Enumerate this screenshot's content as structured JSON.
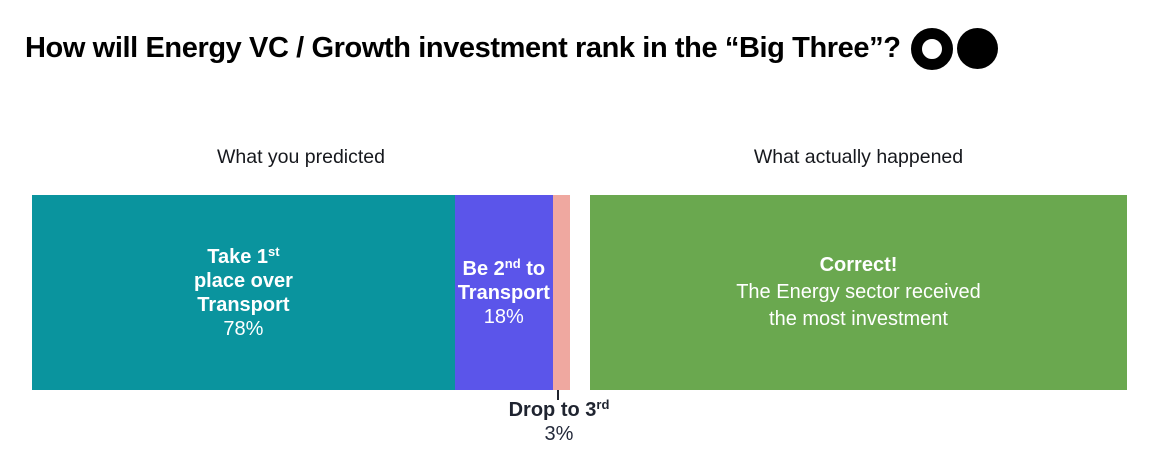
{
  "title": {
    "text": "How will Energy VC / Growth investment rank in the “Big Three”?",
    "icons": [
      {
        "name": "hollow-circle-icon",
        "style": "ring"
      },
      {
        "name": "filled-circle-icon",
        "style": "solid"
      }
    ]
  },
  "colors": {
    "teal": "#0a949e",
    "purple": "#5b55ea",
    "salmon": "#efa8a0",
    "green": "#6aa84f",
    "callout_text": "#1f2430",
    "background": "#ffffff"
  },
  "panels": {
    "predicted": {
      "header": "What you predicted",
      "segment_first": {
        "line1_text": "Take 1",
        "line1_sup": "st",
        "line2": "place over",
        "line3": "Transport",
        "pct": "78%"
      },
      "segment_second": {
        "line1_text": "Be 2",
        "line1_sup": "nd",
        "line1_tail": " to",
        "line2": "Transport",
        "pct": "18%"
      },
      "segment_third": {
        "label_text": "Drop to 3",
        "label_sup": "rd",
        "pct": "3%"
      }
    },
    "actual": {
      "header": "What actually happened",
      "box": {
        "line1": "Correct!",
        "line2": "The Energy sector received",
        "line3": "the most investment"
      }
    }
  },
  "chart_data": {
    "type": "bar",
    "orientation": "horizontal_stacked",
    "title": "How will Energy VC / Growth investment rank in the “Big Three”?",
    "legend": "none",
    "axes": "none",
    "panels": [
      {
        "header": "What you predicted",
        "total_pct": 100,
        "segments": [
          {
            "label": "Take 1st place over Transport",
            "value_pct": 78,
            "color": "#0a949e",
            "label_position": "inside"
          },
          {
            "label": "Be 2nd to Transport",
            "value_pct": 18,
            "color": "#5b55ea",
            "label_position": "inside"
          },
          {
            "label": "Drop to 3rd",
            "value_pct": 3,
            "color": "#efa8a0",
            "label_position": "below-callout"
          }
        ]
      },
      {
        "header": "What actually happened",
        "segments": [
          {
            "label": "Correct! The Energy sector received the most investment",
            "value_pct": 100,
            "color": "#6aa84f",
            "label_position": "inside"
          }
        ]
      }
    ]
  }
}
